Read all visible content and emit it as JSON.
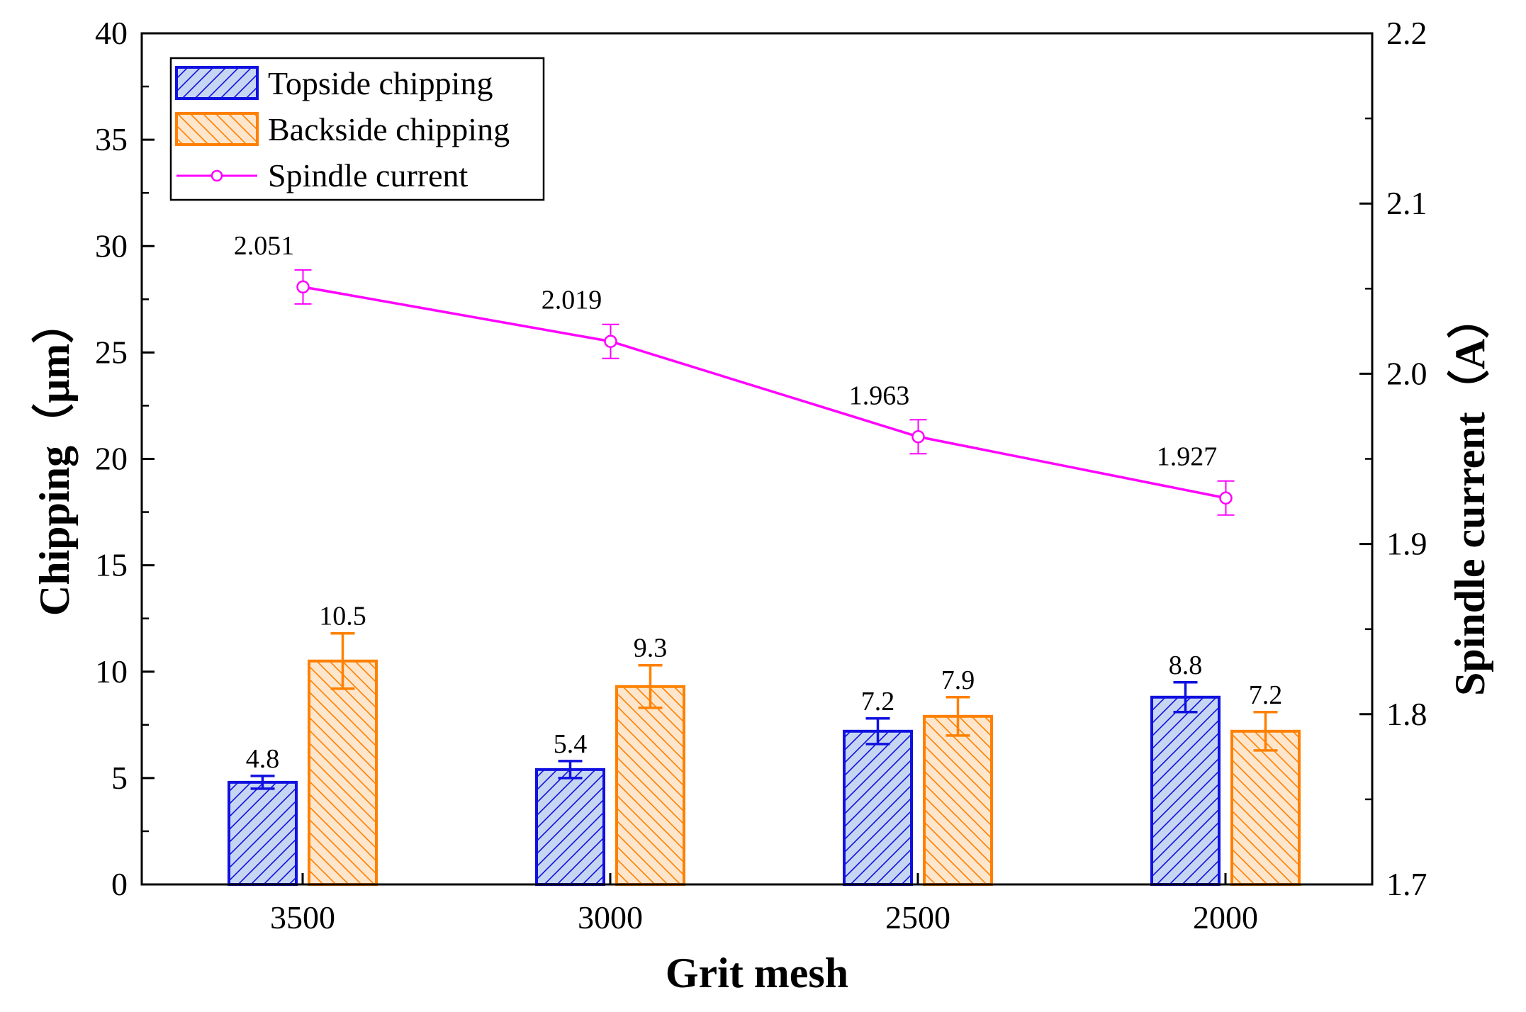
{
  "chart_data": {
    "type": "bar",
    "categories": [
      "3500",
      "3000",
      "2500",
      "2000"
    ],
    "xlabel": "Grit mesh",
    "ylabel": "Chipping（μm）",
    "y2label": "Spindle current（A）",
    "ylim": [
      0,
      40
    ],
    "y2lim": [
      1.7,
      2.2
    ],
    "yticks": [
      "0",
      "5",
      "10",
      "15",
      "20",
      "25",
      "30",
      "35",
      "40"
    ],
    "y2ticks": [
      "1.7",
      "1.8",
      "1.9",
      "2.0",
      "2.1",
      "2.2"
    ],
    "legend_position": "top-left",
    "series": [
      {
        "name": "Topside chipping",
        "kind": "bar",
        "axis": "left",
        "values": [
          4.8,
          5.4,
          7.2,
          8.8
        ],
        "errors": [
          0.3,
          0.4,
          0.6,
          0.7
        ],
        "labels": [
          "4.8",
          "5.4",
          "7.2",
          "8.8"
        ],
        "edge_color": "#1010e0",
        "fill_color": "#c6d6f2"
      },
      {
        "name": "Backside chipping",
        "kind": "bar",
        "axis": "left",
        "values": [
          10.5,
          9.3,
          7.9,
          7.2
        ],
        "errors": [
          1.3,
          1.0,
          0.9,
          0.9
        ],
        "labels": [
          "10.5",
          "9.3",
          "7.9",
          "7.2"
        ],
        "edge_color": "#ff8000",
        "fill_color": "#fde6cc"
      },
      {
        "name": "Spindle current",
        "kind": "line",
        "axis": "right",
        "values": [
          2.051,
          2.019,
          1.963,
          1.927
        ],
        "errors": [
          0.01,
          0.01,
          0.01,
          0.01
        ],
        "labels": [
          "2.051",
          "2.019",
          "1.963",
          "1.927"
        ],
        "color": "#ff00ff"
      }
    ]
  }
}
